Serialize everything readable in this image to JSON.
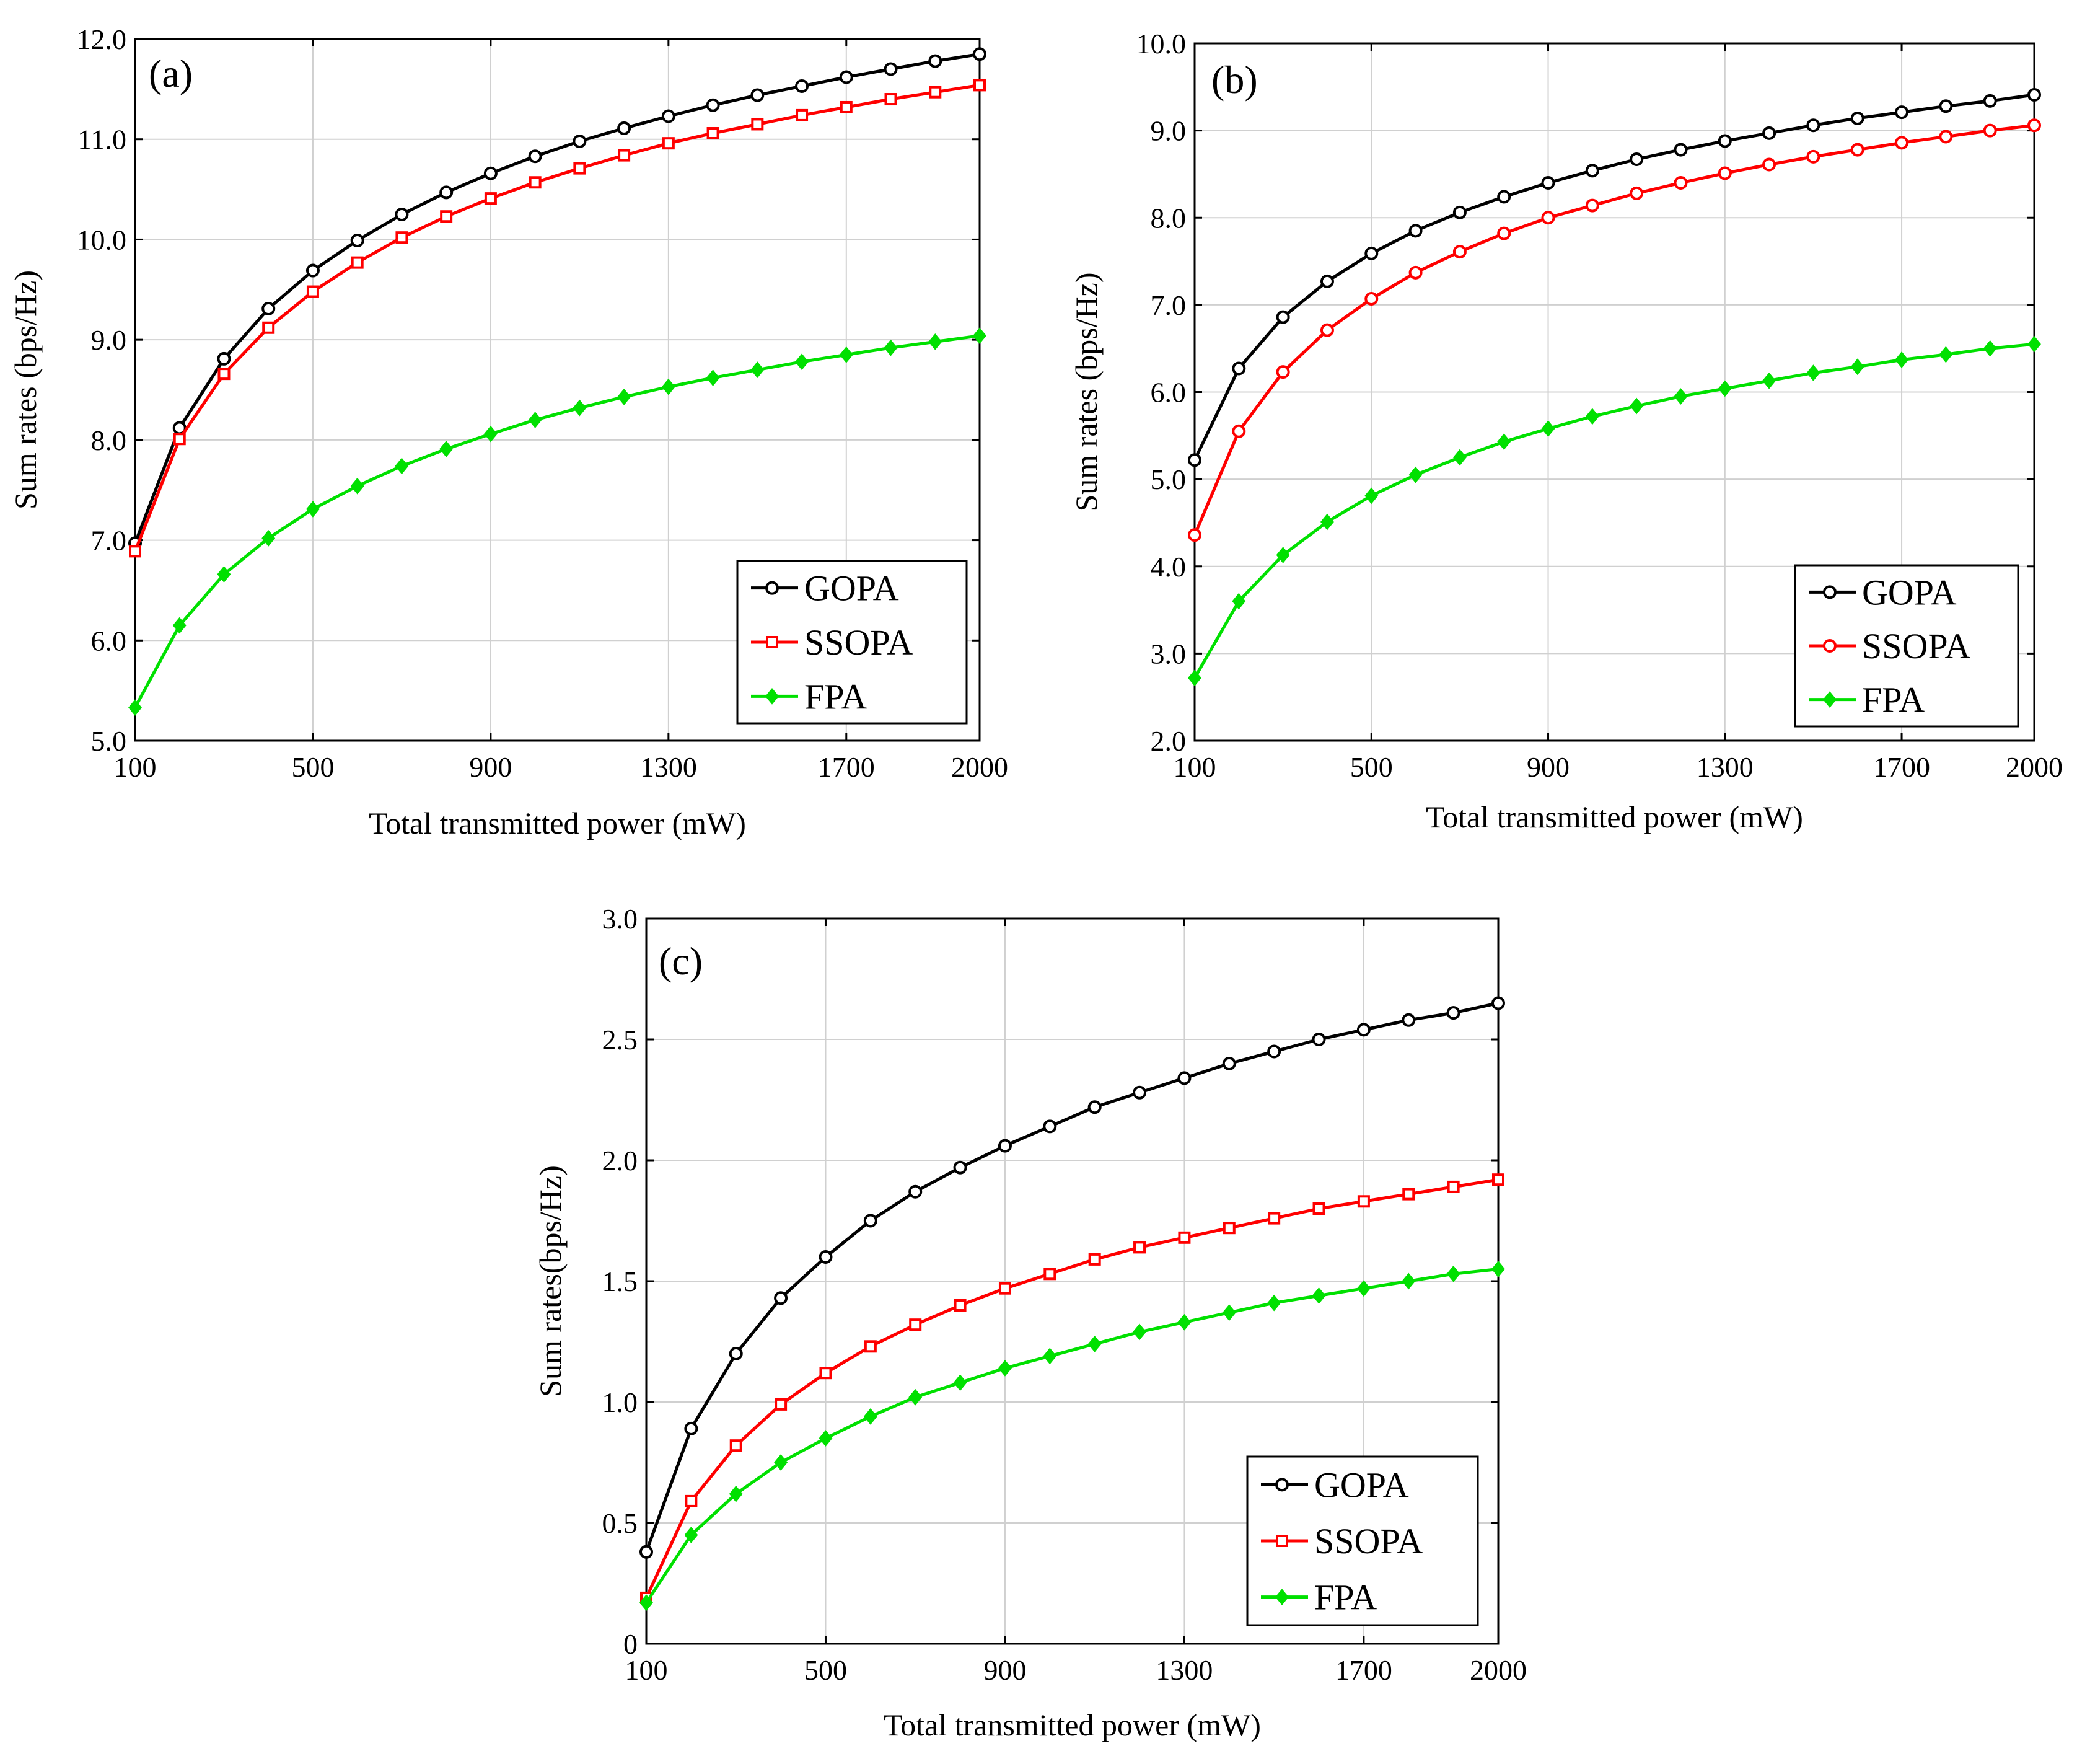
{
  "chart_data": [
    {
      "type": "line",
      "panel_label": "(a)",
      "xlabel": "Total transmitted power (mW)",
      "ylabel": "Sum rates (bps/Hz)",
      "xlim": [
        100,
        2000
      ],
      "ylim": [
        5.0,
        12.0
      ],
      "xticks": [
        100,
        500,
        900,
        1300,
        1700,
        2000
      ],
      "xtick_labels": [
        "100",
        "500",
        "900",
        "1300",
        "1700",
        "2000"
      ],
      "yticks": [
        5,
        6,
        7,
        8,
        9,
        10,
        11,
        12
      ],
      "ytick_labels": [
        "5.0",
        "6.0",
        "7.0",
        "8.0",
        "9.0",
        "10.0",
        "11.0",
        "12.0"
      ],
      "grid": true,
      "legend_position": "bottom-right",
      "x": [
        100,
        200,
        300,
        400,
        500,
        600,
        700,
        800,
        900,
        1000,
        1100,
        1200,
        1300,
        1400,
        1500,
        1600,
        1700,
        1800,
        1900,
        2000
      ],
      "series": [
        {
          "name": "GOPA",
          "color": "#000000",
          "marker": "circle",
          "values": [
            6.97,
            8.12,
            8.81,
            9.31,
            9.69,
            9.99,
            10.25,
            10.47,
            10.66,
            10.83,
            10.98,
            11.11,
            11.23,
            11.34,
            11.44,
            11.53,
            11.62,
            11.7,
            11.78,
            11.85
          ]
        },
        {
          "name": "SSOPA",
          "color": "#ff0000",
          "marker": "square",
          "values": [
            6.89,
            8.01,
            8.66,
            9.12,
            9.48,
            9.77,
            10.02,
            10.23,
            10.41,
            10.57,
            10.71,
            10.84,
            10.96,
            11.06,
            11.15,
            11.24,
            11.32,
            11.4,
            11.47,
            11.54
          ]
        },
        {
          "name": "FPA",
          "color": "#00e000",
          "marker": "diamond",
          "values": [
            5.33,
            6.15,
            6.66,
            7.02,
            7.31,
            7.54,
            7.74,
            7.91,
            8.06,
            8.2,
            8.32,
            8.43,
            8.53,
            8.62,
            8.7,
            8.78,
            8.85,
            8.92,
            8.98,
            9.04
          ]
        }
      ]
    },
    {
      "type": "line",
      "panel_label": "(b)",
      "xlabel": "Total transmitted power  (mW)",
      "ylabel": "Sum rates  (bps/Hz)",
      "xlim": [
        100,
        2000
      ],
      "ylim": [
        2.0,
        10.0
      ],
      "xticks": [
        100,
        500,
        900,
        1300,
        1700,
        2000
      ],
      "xtick_labels": [
        "100",
        "500",
        "900",
        "1300",
        "1700",
        "2000"
      ],
      "yticks": [
        2,
        3,
        4,
        5,
        6,
        7,
        8,
        9,
        10
      ],
      "ytick_labels": [
        "2.0",
        "3.0",
        "4.0",
        "5.0",
        "6.0",
        "7.0",
        "8.0",
        "9.0",
        "10.0"
      ],
      "grid": true,
      "legend_position": "bottom-right",
      "x": [
        100,
        200,
        300,
        400,
        500,
        600,
        700,
        800,
        900,
        1000,
        1100,
        1200,
        1300,
        1400,
        1500,
        1600,
        1700,
        1800,
        1900,
        2000
      ],
      "series": [
        {
          "name": "GOPA",
          "color": "#000000",
          "marker": "circle",
          "values": [
            5.22,
            6.27,
            6.86,
            7.27,
            7.59,
            7.85,
            8.06,
            8.24,
            8.4,
            8.54,
            8.67,
            8.78,
            8.88,
            8.97,
            9.06,
            9.14,
            9.21,
            9.28,
            9.34,
            9.41
          ]
        },
        {
          "name": "SSOPA",
          "color": "#ff0000",
          "marker": "circle",
          "values": [
            4.36,
            5.55,
            6.23,
            6.71,
            7.07,
            7.37,
            7.61,
            7.82,
            8.0,
            8.14,
            8.28,
            8.4,
            8.51,
            8.61,
            8.7,
            8.78,
            8.86,
            8.93,
            9.0,
            9.06
          ]
        },
        {
          "name": "FPA",
          "color": "#00e000",
          "marker": "diamond",
          "values": [
            2.72,
            3.6,
            4.13,
            4.51,
            4.81,
            5.05,
            5.25,
            5.43,
            5.58,
            5.72,
            5.84,
            5.95,
            6.04,
            6.13,
            6.22,
            6.29,
            6.37,
            6.43,
            6.5,
            6.55
          ]
        }
      ]
    },
    {
      "type": "line",
      "panel_label": "(c)",
      "xlabel": "Total transmitted power (mW)",
      "ylabel": "Sum rates(bps/Hz)",
      "xlim": [
        100,
        2000
      ],
      "ylim": [
        0,
        3.0
      ],
      "xticks": [
        100,
        500,
        900,
        1300,
        1700,
        2000
      ],
      "xtick_labels": [
        "100",
        "500",
        "900",
        "1300",
        "1700",
        "2000"
      ],
      "yticks": [
        0,
        0.5,
        1.0,
        1.5,
        2.0,
        2.5,
        3.0
      ],
      "ytick_labels": [
        "0",
        "0.5",
        "1.0",
        "1.5",
        "2.0",
        "2.5",
        "3.0"
      ],
      "grid": true,
      "legend_position": "bottom-right",
      "x": [
        100,
        200,
        300,
        400,
        500,
        600,
        700,
        800,
        900,
        1000,
        1100,
        1200,
        1300,
        1400,
        1500,
        1600,
        1700,
        1800,
        1900,
        2000
      ],
      "series": [
        {
          "name": "GOPA",
          "color": "#000000",
          "marker": "circle",
          "values": [
            0.38,
            0.89,
            1.2,
            1.43,
            1.6,
            1.75,
            1.87,
            1.97,
            2.06,
            2.14,
            2.22,
            2.28,
            2.34,
            2.4,
            2.45,
            2.5,
            2.54,
            2.58,
            2.61,
            2.65
          ]
        },
        {
          "name": "SSOPA",
          "color": "#ff0000",
          "marker": "square",
          "values": [
            0.19,
            0.59,
            0.82,
            0.99,
            1.12,
            1.23,
            1.32,
            1.4,
            1.47,
            1.53,
            1.59,
            1.64,
            1.68,
            1.72,
            1.76,
            1.8,
            1.83,
            1.86,
            1.89,
            1.92
          ]
        },
        {
          "name": "FPA",
          "color": "#00e000",
          "marker": "diamond",
          "values": [
            0.17,
            0.45,
            0.62,
            0.75,
            0.85,
            0.94,
            1.02,
            1.08,
            1.14,
            1.19,
            1.24,
            1.29,
            1.33,
            1.37,
            1.41,
            1.44,
            1.47,
            1.5,
            1.53,
            1.55
          ]
        }
      ]
    }
  ]
}
